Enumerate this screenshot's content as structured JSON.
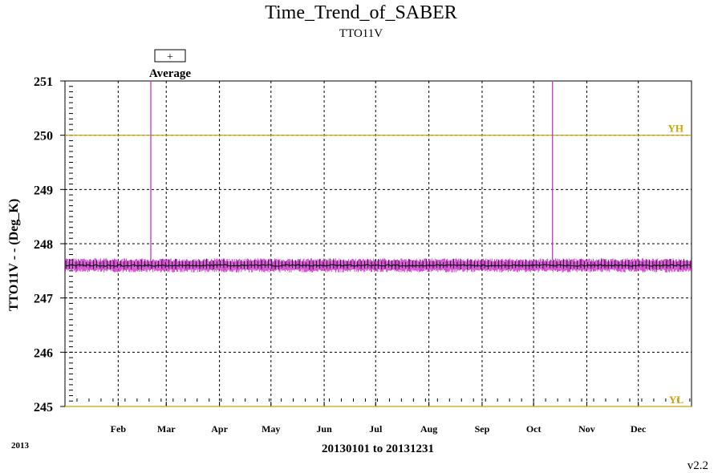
{
  "chart_data": {
    "type": "line",
    "title": "Time_Trend_of_SABER",
    "subtitle": "TTO11V",
    "ylabel": "TTO11V - - (Deg_K)",
    "xlabel": "20130101 to 20131231",
    "year_label": "2013",
    "version": "v2.2",
    "legend": {
      "symbol": "+",
      "label": "Average",
      "placement": "top-left"
    },
    "ylim": [
      245,
      251
    ],
    "y_ticks": [
      "245",
      "246",
      "247",
      "248",
      "249",
      "250",
      "251"
    ],
    "xlim": [
      "2013-01-01",
      "2013-12-31"
    ],
    "x_month_ticks": [
      {
        "date": "2013-02-01",
        "label": "Feb"
      },
      {
        "date": "2013-03-01",
        "label": "Mar"
      },
      {
        "date": "2013-04-01",
        "label": "Apr"
      },
      {
        "date": "2013-05-01",
        "label": "May"
      },
      {
        "date": "2013-06-01",
        "label": "Jun"
      },
      {
        "date": "2013-07-01",
        "label": "Jul"
      },
      {
        "date": "2013-08-01",
        "label": "Aug"
      },
      {
        "date": "2013-09-01",
        "label": "Sep"
      },
      {
        "date": "2013-10-01",
        "label": "Oct"
      },
      {
        "date": "2013-11-01",
        "label": "Nov"
      },
      {
        "date": "2013-12-01",
        "label": "Dec"
      }
    ],
    "limits": [
      {
        "name": "YH",
        "value": 250,
        "color": "#c8a400"
      },
      {
        "name": "YL",
        "value": 245,
        "color": "#c8a400"
      }
    ],
    "grid": true,
    "series": [
      {
        "name": "Average",
        "color": "#000000",
        "style": "line-with-plus-markers",
        "baseline": 247.6,
        "min": 247.55,
        "max": 247.72
      },
      {
        "color": "#cc33cc",
        "style": "min-max-band",
        "lower": 247.5,
        "upper": 247.7,
        "spikes": [
          {
            "date": "2013-02-20",
            "value": 251
          },
          {
            "date": "2013-10-12",
            "value": 251
          }
        ]
      }
    ]
  }
}
